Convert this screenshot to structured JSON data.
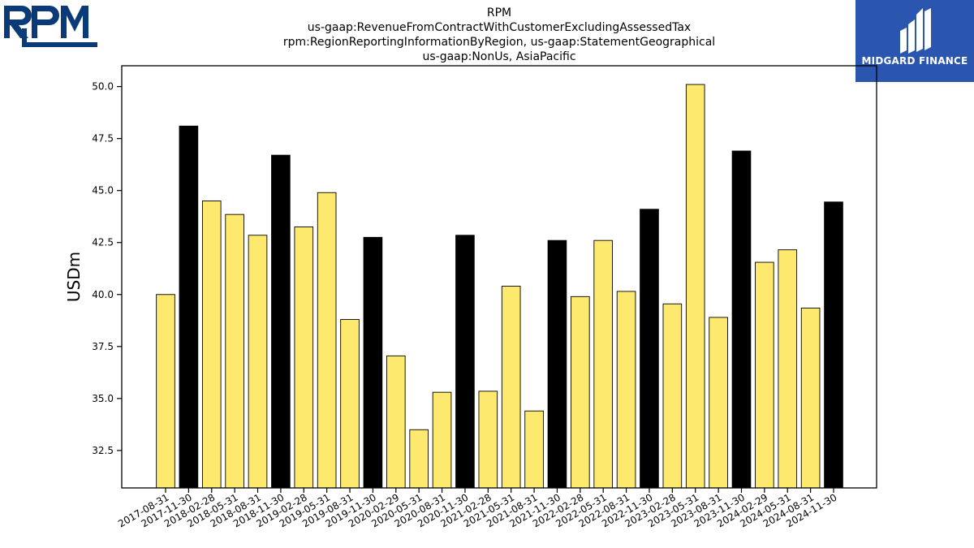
{
  "header": {
    "title_lines": [
      "RPM",
      "us-gaap:RevenueFromContractWithCustomerExcludingAssessedTax",
      "rpm:RegionReportingInformationByRegion, us-gaap:StatementGeographical",
      "us-gaap:NonUs, AsiaPacific"
    ]
  },
  "logos": {
    "left_text": "RPM",
    "right_text": "MIDGARD FINANCE",
    "left_color": "#0a3a78",
    "right_bg": "#2a56b0"
  },
  "chart_data": {
    "type": "bar",
    "ylabel": "USDm",
    "xlabel": "",
    "ylim": [
      30.7,
      51.0
    ],
    "yticks": [
      "32.5",
      "35.0",
      "37.5",
      "40.0",
      "42.5",
      "45.0",
      "47.5",
      "50.0"
    ],
    "colors": {
      "normal": "#fde96e",
      "highlight": "#000000"
    },
    "categories": [
      "2017-08-31",
      "2017-11-30",
      "2018-02-28",
      "2018-05-31",
      "2018-08-31",
      "2018-11-30",
      "2019-02-28",
      "2019-05-31",
      "2019-08-31",
      "2019-11-30",
      "2020-02-29",
      "2020-05-31",
      "2020-08-31",
      "2020-11-30",
      "2021-02-28",
      "2021-05-31",
      "2021-08-31",
      "2021-11-30",
      "2022-02-28",
      "2022-05-31",
      "2022-08-31",
      "2022-11-30",
      "2023-02-28",
      "2023-05-31",
      "2023-08-31",
      "2023-11-30",
      "2024-02-29",
      "2024-05-31",
      "2024-08-31",
      "2024-11-30"
    ],
    "values": [
      40.0,
      48.1,
      44.5,
      43.85,
      42.85,
      46.7,
      43.25,
      44.9,
      38.8,
      42.75,
      37.05,
      33.5,
      35.3,
      42.85,
      35.35,
      40.4,
      34.4,
      42.6,
      39.9,
      42.6,
      40.15,
      44.1,
      39.55,
      50.1,
      38.9,
      46.9,
      41.55,
      42.15,
      39.35,
      44.45
    ],
    "highlight": [
      false,
      true,
      false,
      false,
      false,
      true,
      false,
      false,
      false,
      true,
      false,
      false,
      false,
      true,
      false,
      false,
      false,
      true,
      false,
      false,
      false,
      true,
      false,
      false,
      false,
      true,
      false,
      false,
      false,
      true
    ]
  }
}
